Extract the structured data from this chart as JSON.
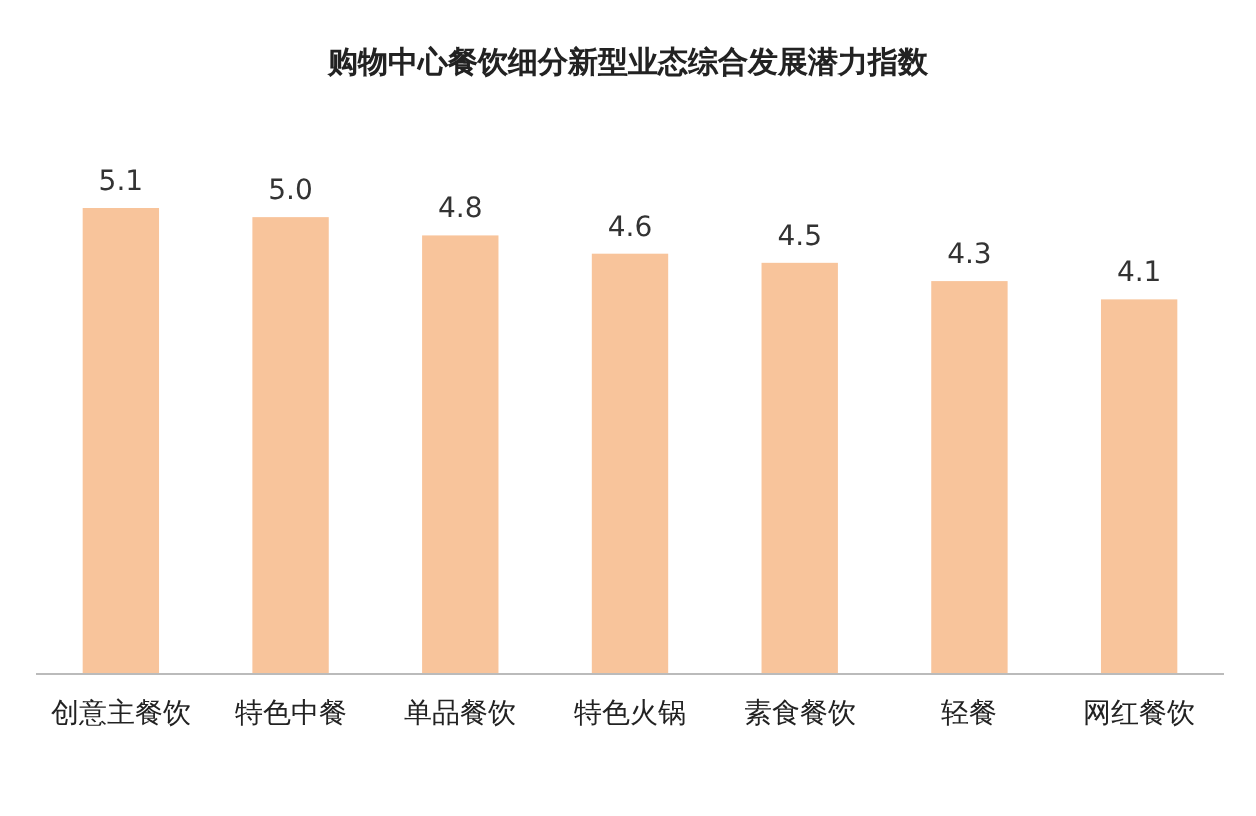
{
  "chart_data": {
    "type": "bar",
    "title": "购物中心餐饮细分新型业态综合发展潜力指数",
    "categories": [
      "创意主餐饮",
      "特色中餐",
      "单品餐饮",
      "特色火锅",
      "素食餐饮",
      "轻餐",
      "网红餐饮"
    ],
    "values": [
      5.1,
      5.0,
      4.8,
      4.6,
      4.5,
      4.3,
      4.1
    ],
    "color": "#f8c49b",
    "value_labels": [
      "5.1",
      "5.0",
      "4.8",
      "4.6",
      "4.5",
      "4.3",
      "4.1"
    ]
  }
}
